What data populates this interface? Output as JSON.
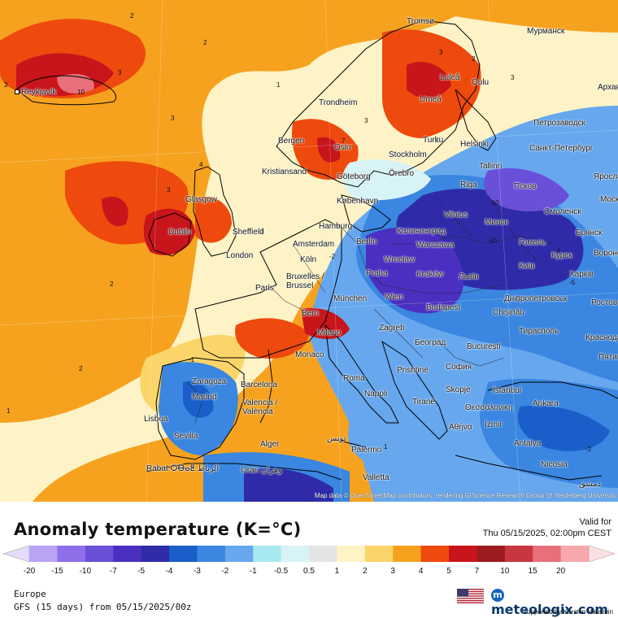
{
  "title": "Anomaly temperature (K=°C)",
  "valid_label": "Valid for",
  "valid_time": "Thu 05/15/2025, 02:00pm CEST",
  "region": "Europe",
  "model_run": "GFS (15 days) from 05/15/2025/00z",
  "brand": "meteologix.com",
  "supported_by": "supported by Karsten Haustein",
  "attribution": "Map data © OpenStreetMap contributors, rendering GIScience Research Group @ Heidelberg University",
  "colorbar": {
    "ticks": [
      "-20",
      "-15",
      "-10",
      "-7",
      "-5",
      "-4",
      "-3",
      "-2",
      "-1",
      "-0.5",
      "0.5",
      "1",
      "2",
      "3",
      "4",
      "5",
      "7",
      "10",
      "15",
      "20"
    ],
    "colors": [
      "#b9a3f5",
      "#8f6fe9",
      "#6a4fd8",
      "#4b2fc0",
      "#2f2ba8",
      "#1a5fc9",
      "#3a86e0",
      "#66a7ee",
      "#a8e8f0",
      "#d7f3f5",
      "#e4e4e4",
      "#fdf3c6",
      "#fbd569",
      "#f6a21f",
      "#ee4a0d",
      "#c8141b",
      "#9b1b1e",
      "#c8373f",
      "#e7707a",
      "#f6a8ac"
    ],
    "unit": "K=°C"
  },
  "cities": [
    {
      "name": "Reykjavík"
    },
    {
      "name": "Tromsø"
    },
    {
      "name": "Мурманск"
    },
    {
      "name": "Luleå"
    },
    {
      "name": "Oulu"
    },
    {
      "name": "Umeå"
    },
    {
      "name": "Trondheim"
    },
    {
      "name": "Bergen"
    },
    {
      "name": "Oslo"
    },
    {
      "name": "Kristiansand"
    },
    {
      "name": "Göteborg"
    },
    {
      "name": "Stockholm"
    },
    {
      "name": "Örebro"
    },
    {
      "name": "Turku"
    },
    {
      "name": "Helsinki"
    },
    {
      "name": "Tallinn"
    },
    {
      "name": "Петрозаводск"
    },
    {
      "name": "Санкт-Петербург"
    },
    {
      "name": "Архангельск"
    },
    {
      "name": "Ярославль"
    },
    {
      "name": "Riga"
    },
    {
      "name": "Псков"
    },
    {
      "name": "København"
    },
    {
      "name": "Glasgow"
    },
    {
      "name": "Dublin"
    },
    {
      "name": "Sheffield"
    },
    {
      "name": "London"
    },
    {
      "name": "Hamburg"
    },
    {
      "name": "Калининград"
    },
    {
      "name": "Vilnius"
    },
    {
      "name": "Минск"
    },
    {
      "name": "Смоленск"
    },
    {
      "name": "Москва"
    },
    {
      "name": "Брянск"
    },
    {
      "name": "Amsterdam"
    },
    {
      "name": "Berlin"
    },
    {
      "name": "Warszawa"
    },
    {
      "name": "Гомель"
    },
    {
      "name": "Курск"
    },
    {
      "name": "Воронеж"
    },
    {
      "name": "Köln"
    },
    {
      "name": "Bruxelles / Brussel"
    },
    {
      "name": "Wrocław"
    },
    {
      "name": "Kraków"
    },
    {
      "name": "Львів"
    },
    {
      "name": "Київ"
    },
    {
      "name": "Харків"
    },
    {
      "name": "Paris"
    },
    {
      "name": "Praha"
    },
    {
      "name": "München"
    },
    {
      "name": "Wien"
    },
    {
      "name": "Budapest"
    },
    {
      "name": "Дніпропетровськ"
    },
    {
      "name": "Ростов"
    },
    {
      "name": "Chişinău"
    },
    {
      "name": "Bern"
    },
    {
      "name": "Milano"
    },
    {
      "name": "Zagreb"
    },
    {
      "name": "Тирасполь"
    },
    {
      "name": "Краснодар"
    },
    {
      "name": "Monaco"
    },
    {
      "name": "Београд"
    },
    {
      "name": "București"
    },
    {
      "name": "Пятигорск"
    },
    {
      "name": "Zaragoza"
    },
    {
      "name": "Barcelona"
    },
    {
      "name": "Roma"
    },
    {
      "name": "Prishtinë"
    },
    {
      "name": "София"
    },
    {
      "name": "Madrid"
    },
    {
      "name": "Valencia / València"
    },
    {
      "name": "Napoli"
    },
    {
      "name": "Skopje"
    },
    {
      "name": "İstanbul"
    },
    {
      "name": "Tiranë"
    },
    {
      "name": "Θεσσαλονίκη"
    },
    {
      "name": "Ankara"
    },
    {
      "name": "Lisboa"
    },
    {
      "name": "Sevilla"
    },
    {
      "name": "Palermo"
    },
    {
      "name": "Αθήνα"
    },
    {
      "name": "İzmir"
    },
    {
      "name": "Alger"
    },
    {
      "name": "تونس"
    },
    {
      "name": "Valletta"
    },
    {
      "name": "Antalya"
    },
    {
      "name": "Rabat ⵔⴱⴰⵟ الرباط"
    },
    {
      "name": "Oran وهران"
    },
    {
      "name": "Nicosia"
    },
    {
      "name": "دمشق"
    }
  ]
}
